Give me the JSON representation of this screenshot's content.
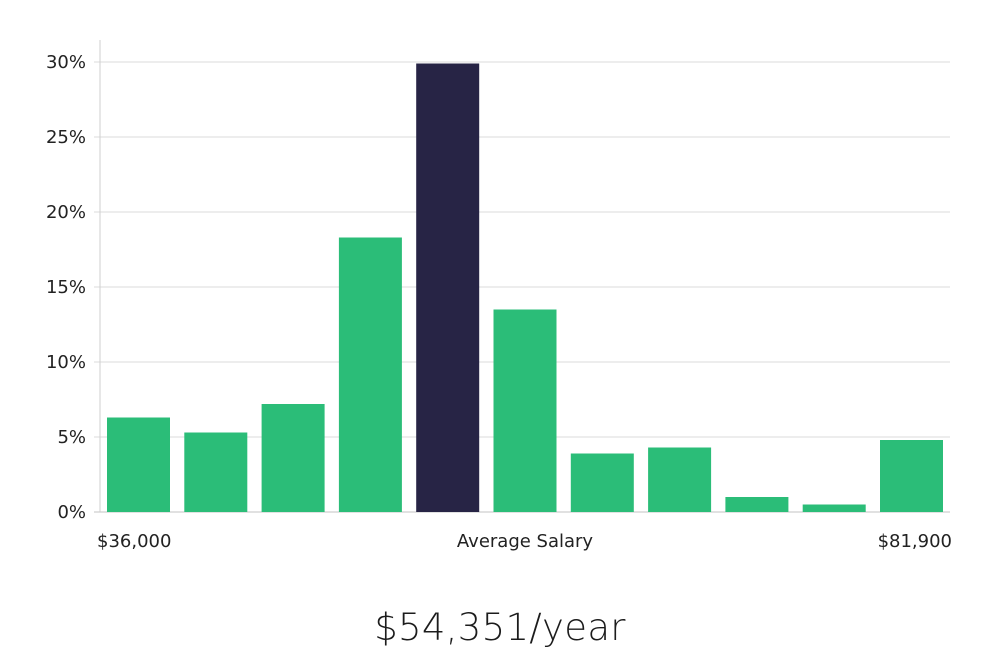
{
  "headline": "$54,351/year",
  "colors": {
    "bar": "#2bbd78",
    "highlight": "#272445",
    "grid": "#e2e2e2",
    "axis": "#cfcfcf",
    "text": "#222222"
  },
  "chart_data": {
    "type": "bar",
    "bin_start_label": "$36,000",
    "bin_end_label": "$81,900",
    "xlabel": "Average Salary",
    "ylabel": "",
    "values": [
      6.3,
      5.3,
      7.2,
      18.3,
      29.9,
      13.5,
      3.9,
      4.3,
      1.0,
      0.5,
      4.8
    ],
    "highlight_index": 4,
    "ylim": [
      0,
      30
    ],
    "yticks": [
      {
        "value": 0,
        "label": "0%"
      },
      {
        "value": 5,
        "label": "5%"
      },
      {
        "value": 10,
        "label": "10%"
      },
      {
        "value": 15,
        "label": "15%"
      },
      {
        "value": 20,
        "label": "20%"
      },
      {
        "value": 25,
        "label": "25%"
      },
      {
        "value": 30,
        "label": "30%"
      }
    ],
    "grid": true,
    "legend": "none"
  }
}
